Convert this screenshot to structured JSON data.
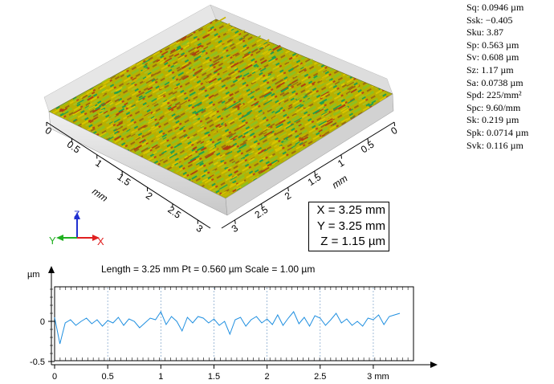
{
  "parameters": [
    {
      "label": "Sq",
      "value": "0.0946 µm"
    },
    {
      "label": "Ssk",
      "value": "−0.405"
    },
    {
      "label": "Sku",
      "value": "3.87"
    },
    {
      "label": "Sp",
      "value": "0.563 µm"
    },
    {
      "label": "Sv",
      "value": "0.608 µm"
    },
    {
      "label": "Sz",
      "value": "1.17 µm"
    },
    {
      "label": "Sa",
      "value": "0.0738 µm"
    },
    {
      "label": "Spd",
      "value": "225/mm²"
    },
    {
      "label": "Spc",
      "value": "9.60/mm"
    },
    {
      "label": "Sk",
      "value": "0.219 µm"
    },
    {
      "label": "Spk",
      "value": "0.0714 µm"
    },
    {
      "label": "Svk",
      "value": "0.116 µm"
    }
  ],
  "surface": {
    "left_axis_ticks": [
      "0",
      "0.5",
      "1",
      "1.5",
      "2",
      "2.5",
      "3"
    ],
    "right_axis_ticks": [
      "0",
      "0.5",
      "1",
      "1.5",
      "2",
      "2.5",
      "3"
    ],
    "left_axis_unit": "mm",
    "right_axis_unit": "mm",
    "dimensions": [
      "X = 3.25 mm",
      "Y = 3.25 mm",
      "Z = 1.15 µm"
    ],
    "triad_labels": [
      "Z",
      "Y",
      "X"
    ],
    "colors": [
      "#c8b400",
      "#a0c01a",
      "#d8c800",
      "#9a6a10",
      "#20a050",
      "#b04010"
    ]
  },
  "profile": {
    "header": "Length = 3.25 mm  Pt = 0.560 µm  Scale = 1.00 µm",
    "y_unit": "µm",
    "y_ticks": [
      "0",
      "-0.5"
    ],
    "x_ticks": [
      "0",
      "0.5",
      "1",
      "1.5",
      "2",
      "2.5",
      "3 mm"
    ],
    "line_color": "#1f8fe0"
  },
  "chart_data": {
    "type": "line",
    "title": "Length = 3.25 mm  Pt = 0.560 µm  Scale = 1.00 µm",
    "xlabel": "mm",
    "ylabel": "µm",
    "xlim": [
      0,
      3.25
    ],
    "ylim": [
      -0.5,
      0.5
    ],
    "series": [
      {
        "x": [
          0,
          0.05,
          0.1,
          0.15,
          0.2,
          0.25,
          0.3,
          0.35,
          0.4,
          0.45,
          0.5,
          0.55,
          0.6,
          0.65,
          0.7,
          0.75,
          0.8,
          0.85,
          0.9,
          0.95,
          1.0,
          1.05,
          1.1,
          1.15,
          1.2,
          1.25,
          1.3,
          1.35,
          1.4,
          1.45,
          1.5,
          1.55,
          1.6,
          1.65,
          1.7,
          1.75,
          1.8,
          1.85,
          1.9,
          1.95,
          2.0,
          2.05,
          2.1,
          2.15,
          2.2,
          2.25,
          2.3,
          2.35,
          2.4,
          2.45,
          2.5,
          2.55,
          2.6,
          2.65,
          2.7,
          2.75,
          2.8,
          2.85,
          2.9,
          2.95,
          3.0,
          3.05,
          3.1,
          3.15,
          3.2,
          3.25
        ],
        "values": [
          0.05,
          -0.28,
          -0.02,
          0.02,
          -0.05,
          0.0,
          0.04,
          -0.03,
          0.02,
          -0.06,
          0.01,
          -0.02,
          0.05,
          -0.05,
          0.03,
          0.0,
          -0.08,
          -0.02,
          0.04,
          0.02,
          0.12,
          -0.04,
          0.06,
          0.0,
          -0.12,
          0.05,
          -0.02,
          0.06,
          0.04,
          -0.02,
          0.03,
          -0.05,
          0.0,
          -0.16,
          0.02,
          0.05,
          -0.06,
          0.02,
          0.06,
          -0.02,
          0.03,
          -0.04,
          0.08,
          -0.05,
          0.04,
          0.12,
          -0.03,
          0.05,
          -0.06,
          0.07,
          0.04,
          -0.05,
          0.02,
          0.1,
          -0.02,
          0.03,
          -0.05,
          0.0,
          -0.06,
          0.04,
          0.02,
          0.08,
          -0.04,
          0.06,
          0.08,
          0.1
        ]
      }
    ]
  }
}
